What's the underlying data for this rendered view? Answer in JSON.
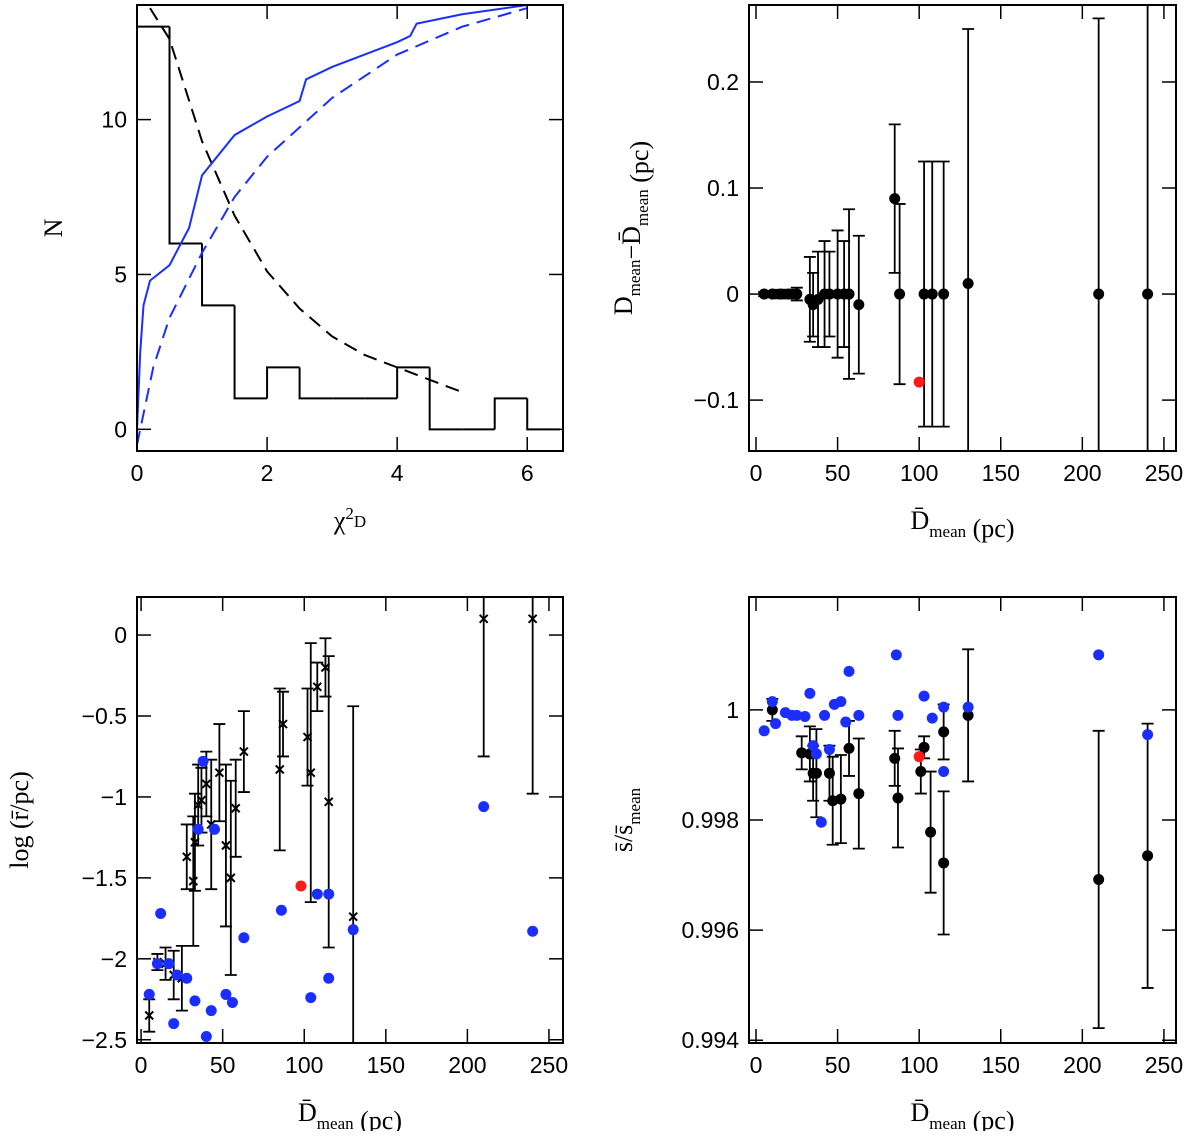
{
  "chart_data": [
    {
      "type": "histogram",
      "xlabel": [
        {
          "t": "χ"
        },
        {
          "t": "2",
          "sup": true
        },
        {
          "t": "D",
          "sub": true
        }
      ],
      "ylabel": [
        {
          "t": "N"
        }
      ],
      "xlim": [
        0,
        6.55
      ],
      "ylim": [
        -0.7,
        13.7
      ],
      "xticks": [
        0,
        2,
        4,
        6
      ],
      "yticks": [
        0,
        5,
        10
      ],
      "bins": [
        0,
        0.5,
        1,
        1.5,
        2,
        2.5,
        3,
        3.5,
        4,
        4.5,
        5,
        5.5,
        6,
        6.5
      ],
      "counts": [
        13,
        6,
        4,
        1,
        2,
        1,
        1,
        1,
        2,
        0,
        0,
        1,
        0
      ],
      "color": "#000000",
      "lines": [
        {
          "color": "#000000",
          "dash": true,
          "x": [
            0.2,
            0.5,
            1,
            1.5,
            2,
            2.5,
            3,
            3.5,
            4,
            4.5,
            5
          ],
          "values": [
            13.6,
            12.6,
            9.3,
            6.9,
            5.1,
            3.9,
            3.0,
            2.4,
            2.0,
            1.6,
            1.2
          ]
        },
        {
          "color": "#1a2eff",
          "dash": false,
          "x": [
            0,
            0.05,
            0.1,
            0.2,
            0.5,
            0.8,
            1,
            1.5,
            2,
            2.5,
            2.6,
            3,
            4,
            4.2,
            4.3,
            5,
            6
          ],
          "values": [
            0,
            2.5,
            4,
            4.8,
            5.3,
            6.5,
            8.2,
            9.5,
            10.1,
            10.6,
            11.3,
            11.7,
            12.5,
            12.7,
            13.1,
            13.4,
            13.7
          ]
        },
        {
          "color": "#1a2eff",
          "dash": true,
          "x": [
            0,
            0.25,
            0.5,
            1,
            1.5,
            2,
            3,
            4,
            5,
            6
          ],
          "values": [
            -0.5,
            2,
            3.6,
            5.7,
            7.5,
            8.8,
            10.7,
            12.1,
            13.0,
            13.6
          ]
        }
      ]
    },
    {
      "type": "scatter",
      "xlabel": [
        {
          "t": "D̄"
        },
        {
          "t": "mean",
          "sub": true
        },
        {
          "t": " (pc)"
        }
      ],
      "ylabel": [
        {
          "t": "D"
        },
        {
          "t": "mean",
          "sub": true
        },
        {
          "t": "−D̄"
        },
        {
          "t": "mean",
          "sub": true
        },
        {
          "t": " (pc)"
        }
      ],
      "xlim": [
        -4.3,
        257.4
      ],
      "ylim": [
        -0.148,
        0.2726
      ],
      "xticks": [
        0,
        50,
        100,
        150,
        200,
        250
      ],
      "yticks": [
        {
          "value": -0.1,
          "label": "−0.1"
        },
        0,
        0.1,
        0.2
      ],
      "series": [
        {
          "color": "#000000",
          "marker": "dot",
          "x": [
            5,
            10,
            15,
            20,
            25,
            33,
            35,
            38,
            42,
            45,
            50,
            54,
            57,
            63,
            85,
            88,
            103,
            108,
            115,
            130,
            210,
            240
          ],
          "values": [
            0,
            0,
            0,
            0,
            0,
            -0.005,
            -0.01,
            -0.005,
            0,
            0,
            0,
            0,
            0,
            -0.01,
            0.09,
            0,
            0,
            0,
            0,
            0.01,
            0,
            0
          ],
          "errors": [
            0.002,
            0.003,
            0.004,
            0.004,
            0.006,
            0.04,
            0.03,
            0.045,
            0.05,
            0.04,
            0.06,
            0.05,
            0.08,
            0.065,
            0.07,
            0.085,
            0.125,
            0.125,
            0.125,
            0.24,
            0.26,
            0.35
          ]
        },
        {
          "color": "#ff1a1a",
          "marker": "dot",
          "x": [
            100
          ],
          "values": [
            -0.083
          ]
        }
      ]
    },
    {
      "type": "scatter",
      "xlabel": [
        {
          "t": "D̄"
        },
        {
          "t": "mean",
          "sub": true
        },
        {
          "t": " (pc)"
        }
      ],
      "ylabel": [
        {
          "t": "log (r̄/pc)"
        }
      ],
      "xlim": [
        -2.5,
        258.6
      ],
      "ylim": [
        -2.52,
        0.235
      ],
      "xticks": [
        0,
        50,
        100,
        150,
        200,
        250
      ],
      "yticks": [
        {
          "value": -2.5,
          "label": "−2.5"
        },
        {
          "value": -2,
          "label": "−2"
        },
        {
          "value": -1.5,
          "label": "−1.5"
        },
        {
          "value": -1,
          "label": "−1"
        },
        {
          "value": -0.5,
          "label": "−0.5"
        },
        0
      ],
      "series": [
        {
          "color": "#000000",
          "marker": "cross",
          "x": [
            5,
            10,
            15,
            20,
            25,
            28,
            32,
            33,
            35,
            37,
            40,
            43,
            48,
            52,
            55,
            58,
            63,
            85,
            87,
            102,
            104,
            108,
            113,
            115,
            130,
            210,
            240
          ],
          "values": [
            -2.35,
            -2.02,
            -2.03,
            -2.1,
            -2.12,
            -1.37,
            -1.52,
            -1.28,
            -1.05,
            -1.02,
            -0.92,
            -1.17,
            -0.85,
            -1.3,
            -1.5,
            -1.07,
            -0.72,
            -0.83,
            -0.55,
            -0.63,
            -0.85,
            -0.32,
            -0.2,
            -1.03,
            -1.74,
            0.1,
            0.1
          ],
          "errors": [
            0.1,
            0.05,
            0.1,
            0.15,
            0.2,
            0.2,
            0.4,
            0.3,
            0.25,
            0.2,
            0.2,
            0.4,
            0.3,
            0.5,
            0.6,
            0.3,
            0.25,
            0.5,
            0.2,
            0.3,
            0.8,
            0.15,
            0.18,
            0.9,
            1.3,
            0.85,
            1.08
          ]
        },
        {
          "color": "#1a2eff",
          "marker": "dot",
          "x": [
            5,
            10,
            12,
            17,
            20,
            22,
            28,
            33,
            35,
            38,
            40,
            43,
            45,
            52,
            56,
            63,
            86,
            104,
            108,
            115,
            115,
            130,
            210,
            240
          ],
          "values": [
            -2.22,
            -2.03,
            -1.72,
            -2.03,
            -2.4,
            -2.1,
            -2.12,
            -2.26,
            -1.2,
            -0.78,
            -2.48,
            -2.32,
            -1.2,
            -2.22,
            -2.27,
            -1.87,
            -1.7,
            -2.24,
            -1.6,
            -1.6,
            -2.12,
            -1.82,
            -1.06,
            -1.83
          ]
        },
        {
          "color": "#ff1a1a",
          "marker": "dot",
          "x": [
            98
          ],
          "values": [
            -1.55
          ]
        }
      ]
    },
    {
      "type": "scatter",
      "xlabel": [
        {
          "t": "D̄"
        },
        {
          "t": "mean",
          "sub": true
        },
        {
          "t": " (pc)"
        }
      ],
      "ylabel": [
        {
          "t": "s̄/s̄"
        },
        {
          "t": "mean",
          "sub": true
        }
      ],
      "xlim": [
        -4.3,
        257.4
      ],
      "ylim": [
        0.99395,
        1.00205
      ],
      "xticks": [
        0,
        50,
        100,
        150,
        200,
        250
      ],
      "yticks": [
        0.994,
        0.996,
        0.998,
        1
      ],
      "series": [
        {
          "color": "#000000",
          "marker": "dot",
          "x": [
            10,
            28,
            33,
            35,
            37,
            45,
            47,
            52,
            57,
            63,
            85,
            87,
            101,
            103,
            107,
            115,
            115,
            130,
            210,
            240
          ],
          "values": [
            1.0,
            0.99922,
            0.9992,
            0.99885,
            0.99885,
            0.99885,
            0.99835,
            0.99838,
            0.9993,
            0.99848,
            0.99912,
            0.9984,
            0.99888,
            0.99932,
            0.99778,
            0.9996,
            0.99722,
            0.9999,
            0.99692,
            0.99735
          ],
          "errors": [
            0.0002,
            0.0003,
            0.0005,
            0.0005,
            0.0008,
            0.0005,
            0.0008,
            0.0008,
            0.0005,
            0.001,
            0.0005,
            0.0009,
            0.0004,
            0.0002,
            0.0011,
            0.0005,
            0.0013,
            0.0012,
            0.0027,
            0.0024
          ]
        },
        {
          "color": "#1a2eff",
          "marker": "dot",
          "x": [
            5,
            10,
            12,
            18,
            22,
            25,
            30,
            33,
            35,
            37,
            40,
            42,
            45,
            48,
            52,
            55,
            57,
            63,
            86,
            87,
            103,
            108,
            115,
            115,
            130,
            210,
            240
          ],
          "values": [
            0.99962,
            1.00015,
            0.99975,
            0.99995,
            0.9999,
            0.9999,
            0.99988,
            1.0003,
            0.99935,
            0.9992,
            0.99796,
            0.9999,
            0.99928,
            1.0001,
            1.00015,
            0.99978,
            1.0007,
            0.9999,
            1.001,
            0.9999,
            1.00025,
            0.99985,
            0.99888,
            1.00005,
            1.00005,
            1.001,
            0.99955
          ]
        },
        {
          "color": "#ff1a1a",
          "marker": "dot",
          "x": [
            100
          ],
          "values": [
            0.99915
          ]
        }
      ]
    }
  ]
}
